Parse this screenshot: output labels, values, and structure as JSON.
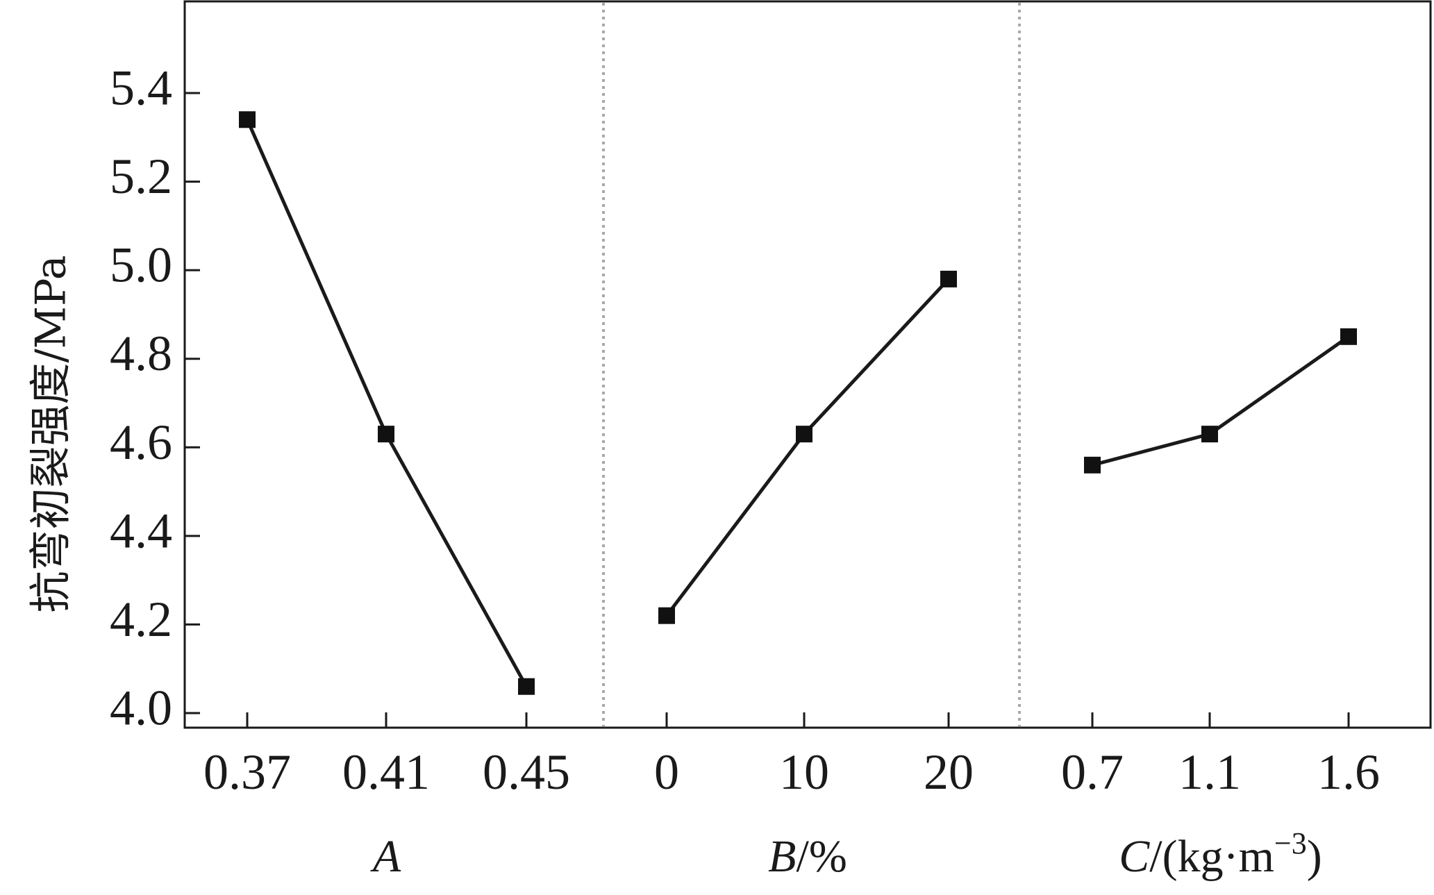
{
  "chart_data": {
    "type": "line",
    "ylabel": "抗弯初裂强度/MPa",
    "ylim": [
      3.97,
      5.53
    ],
    "yticks": [
      "4.0",
      "4.2",
      "4.4",
      "4.6",
      "4.8",
      "5.0",
      "5.2",
      "5.4"
    ],
    "grid": false,
    "panels": [
      {
        "xlabel_italic": "A",
        "xlabel_rest": "",
        "categories": [
          "0.37",
          "0.41",
          "0.45"
        ],
        "values": [
          5.34,
          4.63,
          4.06
        ]
      },
      {
        "xlabel_italic": "B",
        "xlabel_rest": "/%",
        "categories": [
          "0",
          "10",
          "20"
        ],
        "values": [
          4.22,
          4.63,
          4.98
        ]
      },
      {
        "xlabel_italic": "C",
        "xlabel_rest": "/(kg·m",
        "xlabel_sup": "−3",
        "xlabel_tail": ")",
        "categories": [
          "0.7",
          "1.1",
          "1.6"
        ],
        "values": [
          4.56,
          4.63,
          4.85
        ]
      }
    ],
    "colors": {
      "line": "#1a1a1a",
      "marker": "#111111",
      "divider": "#a8a8a8"
    }
  }
}
